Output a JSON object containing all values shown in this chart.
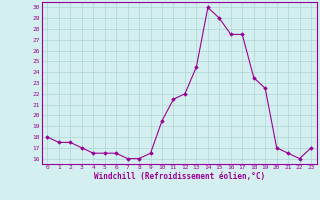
{
  "x": [
    0,
    1,
    2,
    3,
    4,
    5,
    6,
    7,
    8,
    9,
    10,
    11,
    12,
    13,
    14,
    15,
    16,
    17,
    18,
    19,
    20,
    21,
    22,
    23
  ],
  "y": [
    18,
    17.5,
    17.5,
    17,
    16.5,
    16.5,
    16.5,
    16,
    16,
    16.5,
    19.5,
    21.5,
    22,
    24.5,
    30,
    29,
    27.5,
    27.5,
    23.5,
    22.5,
    17,
    16.5,
    16,
    17
  ],
  "line_color": "#990099",
  "marker_color": "#990099",
  "bg_color": "#d4efef",
  "grid_color": "#b0d4d4",
  "xlabel": "Windchill (Refroidissement éolien,°C)",
  "ylabel_ticks": [
    16,
    17,
    18,
    19,
    20,
    21,
    22,
    23,
    24,
    25,
    26,
    27,
    28,
    29,
    30
  ],
  "ylim": [
    15.5,
    30.5
  ],
  "xlim": [
    -0.5,
    23.5
  ]
}
